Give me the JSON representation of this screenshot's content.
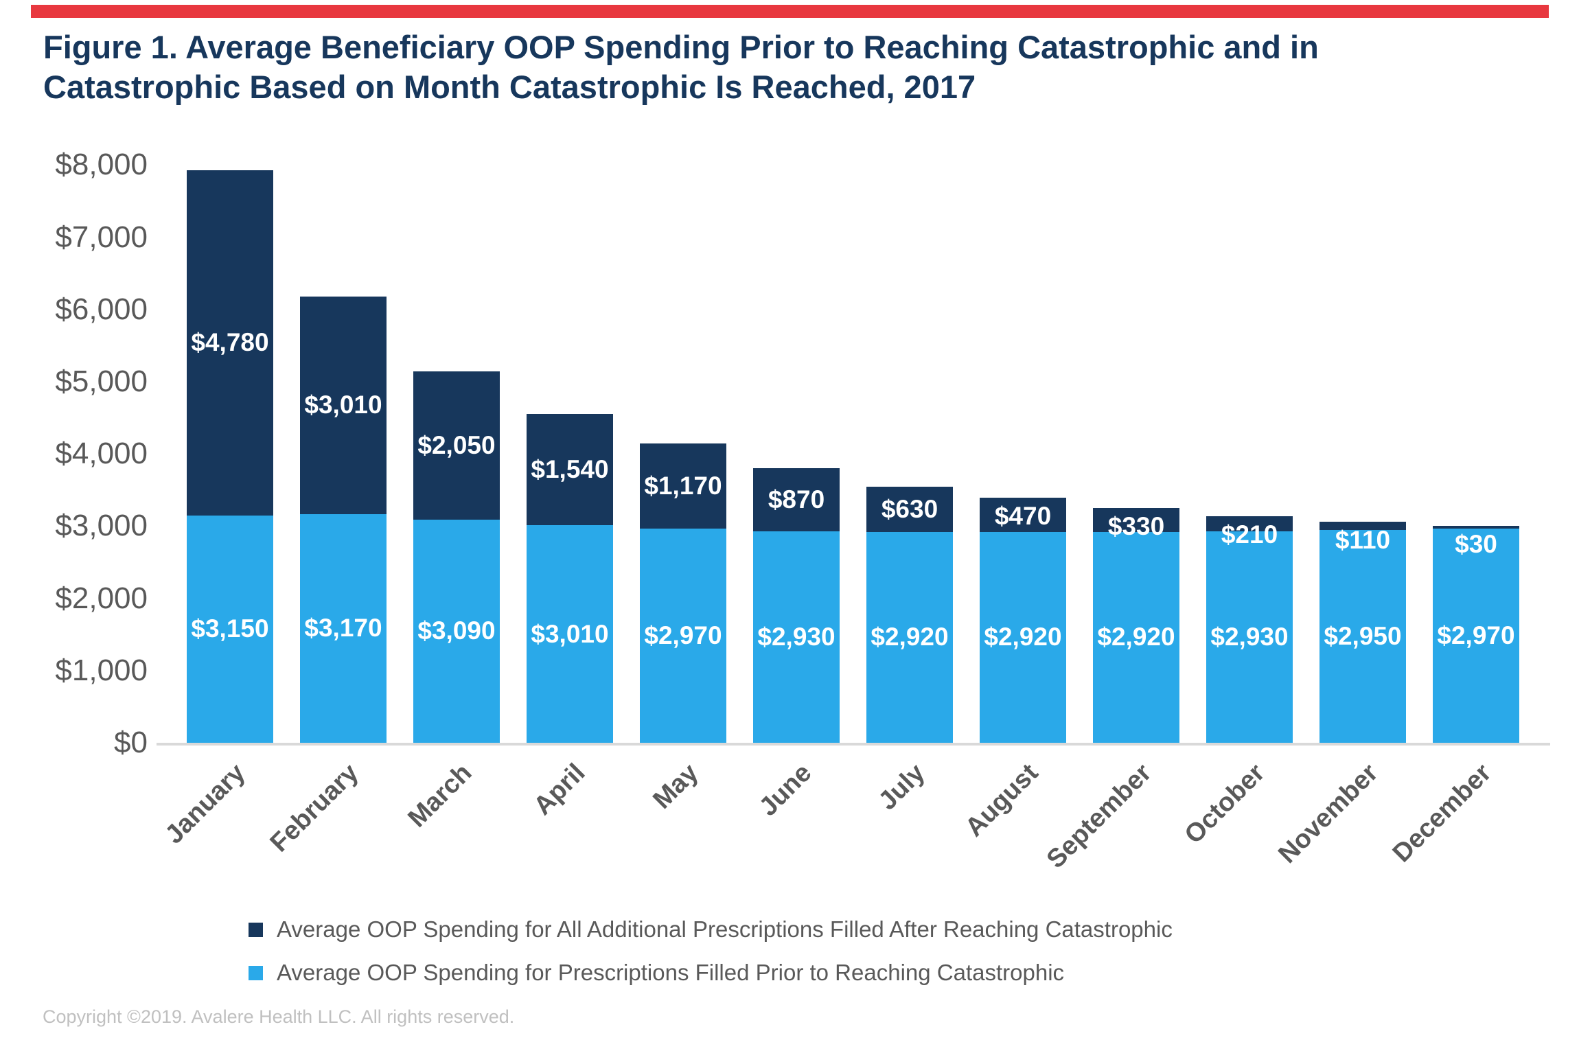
{
  "accent": {
    "color": "#E8383F"
  },
  "title": {
    "line1": "Figure 1. Average Beneficiary OOP Spending Prior to Reaching Catastrophic and in",
    "line2": "Catastrophic Based on Month Catastrophic Is Reached, 2017"
  },
  "chart_data": {
    "type": "bar",
    "stacked": true,
    "title": "Figure 1. Average Beneficiary OOP Spending Prior to Reaching Catastrophic and in Catastrophic Based on Month Catastrophic Is Reached, 2017",
    "categories": [
      "January",
      "February",
      "March",
      "April",
      "May",
      "June",
      "July",
      "August",
      "September",
      "October",
      "November",
      "December"
    ],
    "series": [
      {
        "name": "Average OOP Spending for Prescriptions Filled Prior to Reaching Catastrophic",
        "color": "#2AA9E9",
        "values": [
          3150,
          3170,
          3090,
          3010,
          2970,
          2930,
          2920,
          2920,
          2920,
          2930,
          2950,
          2970
        ],
        "labels": [
          "$3,150",
          "$3,170",
          "$3,090",
          "$3,010",
          "$2,970",
          "$2,930",
          "$2,920",
          "$2,920",
          "$2,920",
          "$2,930",
          "$2,950",
          "$2,970"
        ]
      },
      {
        "name": "Average OOP Spending for All Additional Prescriptions Filled After Reaching Catastrophic",
        "color": "#17375C",
        "values": [
          4780,
          3010,
          2050,
          1540,
          1170,
          870,
          630,
          470,
          330,
          210,
          110,
          30
        ],
        "labels": [
          "$4,780",
          "$3,010",
          "$2,050",
          "$1,540",
          "$1,170",
          "$870",
          "$630",
          "$470",
          "$330",
          "$210",
          "$110",
          "$30"
        ]
      }
    ],
    "y_axis": {
      "tick_values": [
        8000,
        7000,
        6000,
        5000,
        4000,
        3000,
        2000,
        1000,
        0
      ],
      "tick_labels": [
        "$8,000",
        "$7,000",
        "$6,000",
        "$5,000",
        "$4,000",
        "$3,000",
        "$2,000",
        "$1,000",
        "$0"
      ]
    },
    "ylim": [
      0,
      8000
    ],
    "grid": false,
    "legend_position": "bottom",
    "value_label_color": "#FFFFFF",
    "axis_text_color": "#595959",
    "axis_line_color": "#D9D9D9"
  },
  "legend": [
    {
      "label": "Average OOP Spending for All Additional Prescriptions Filled After Reaching Catastrophic",
      "color": "#17375C"
    },
    {
      "label": "Average OOP Spending for Prescriptions Filled Prior to Reaching Catastrophic",
      "color": "#2AA9E9"
    }
  ],
  "footer": {
    "copyright": "Copyright ©2019. Avalere Health LLC. All rights reserved."
  }
}
